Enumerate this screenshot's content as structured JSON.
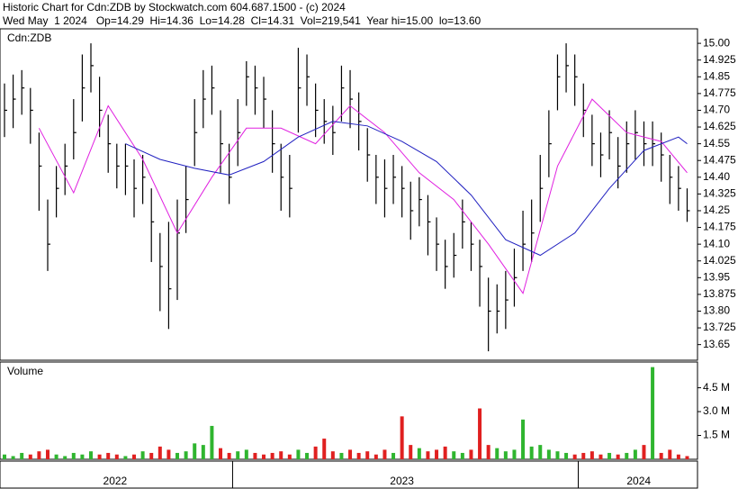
{
  "chart_data": {
    "type": "ohlc",
    "title": "Historic Chart for Cdn:ZDB by Stockwatch.com 604.687.1500 - (c) 2024",
    "subtitle": "Wed May  1 2024   Op=14.29  Hi=14.36  Lo=14.28  Cl=14.31  Vol=219,541  Year hi=15.00  lo=13.60",
    "symbol_label": "Cdn:ZDB",
    "color": "#000000",
    "x": [
      0,
      1,
      2,
      3,
      4,
      5,
      6,
      7,
      8,
      9,
      10,
      11,
      12,
      13,
      14,
      15,
      16,
      17,
      18,
      19,
      20,
      21,
      22,
      23,
      24,
      25,
      26,
      27,
      28,
      29,
      30,
      31,
      32,
      33,
      34,
      35,
      36,
      37,
      38,
      39,
      40,
      41,
      42,
      43,
      44,
      45,
      46,
      47,
      48,
      49,
      50,
      51,
      52,
      53,
      54,
      55,
      56,
      57,
      58,
      59,
      60,
      61,
      62,
      63,
      64,
      65,
      66,
      67,
      68,
      69,
      70,
      71,
      72,
      73,
      74,
      75,
      76,
      77,
      78,
      79
    ],
    "xlim": [
      -0.52,
      80.2
    ],
    "xticks": [
      26.4,
      66.4
    ],
    "xlabels": [
      {
        "value": 12.8,
        "label": "2022"
      },
      {
        "value": 46,
        "label": "2023"
      },
      {
        "value": 73.4,
        "label": "2024"
      }
    ],
    "high": [
      14.82,
      14.86,
      14.88,
      14.8,
      14.6,
      14.3,
      14.45,
      14.55,
      14.75,
      14.95,
      15.0,
      14.85,
      14.68,
      14.55,
      14.55,
      14.48,
      14.5,
      14.35,
      14.15,
      14.2,
      14.3,
      14.45,
      14.75,
      14.88,
      14.9,
      14.7,
      14.55,
      14.75,
      14.92,
      14.9,
      14.85,
      14.7,
      14.55,
      14.5,
      14.98,
      14.95,
      14.82,
      14.75,
      14.72,
      14.9,
      14.88,
      14.78,
      14.62,
      14.5,
      14.48,
      14.5,
      14.45,
      14.38,
      14.4,
      14.32,
      14.22,
      14.12,
      14.15,
      14.3,
      14.2,
      14.12,
      13.95,
      13.92,
      13.98,
      14.08,
      14.25,
      14.3,
      14.5,
      14.7,
      14.95,
      15.0,
      14.95,
      14.82,
      14.68,
      14.6,
      14.7,
      14.58,
      14.65,
      14.7,
      14.65,
      14.65,
      14.6,
      14.5,
      14.45,
      14.35
    ],
    "low": [
      14.58,
      14.62,
      14.68,
      14.55,
      14.25,
      13.98,
      14.22,
      14.32,
      14.48,
      14.65,
      14.78,
      14.58,
      14.42,
      14.35,
      14.32,
      14.22,
      14.28,
      14.02,
      13.8,
      13.72,
      13.85,
      14.15,
      14.45,
      14.62,
      14.68,
      14.42,
      14.28,
      14.45,
      14.72,
      14.68,
      14.62,
      14.42,
      14.25,
      14.22,
      14.6,
      14.72,
      14.58,
      14.55,
      14.5,
      14.65,
      14.62,
      14.52,
      14.38,
      14.28,
      14.22,
      14.28,
      14.22,
      14.12,
      14.18,
      14.05,
      13.98,
      13.9,
      13.95,
      14.08,
      13.98,
      13.82,
      13.62,
      13.7,
      13.72,
      13.82,
      13.98,
      14.02,
      14.2,
      14.4,
      14.7,
      14.78,
      14.72,
      14.58,
      14.45,
      14.4,
      14.48,
      14.35,
      14.42,
      14.48,
      14.45,
      14.45,
      14.38,
      14.28,
      14.25,
      14.2
    ],
    "close": [
      14.7,
      14.75,
      14.8,
      14.7,
      14.45,
      14.1,
      14.35,
      14.45,
      14.6,
      14.8,
      14.9,
      14.7,
      14.55,
      14.45,
      14.45,
      14.35,
      14.4,
      14.2,
      14.0,
      13.9,
      14.15,
      14.3,
      14.6,
      14.75,
      14.8,
      14.55,
      14.4,
      14.6,
      14.85,
      14.8,
      14.75,
      14.55,
      14.4,
      14.35,
      14.8,
      14.85,
      14.7,
      14.65,
      14.6,
      14.8,
      14.75,
      14.65,
      14.5,
      14.4,
      14.35,
      14.4,
      14.35,
      14.25,
      14.3,
      14.2,
      14.1,
      14.0,
      14.05,
      14.2,
      14.1,
      14.0,
      13.8,
      13.8,
      13.85,
      13.95,
      14.1,
      14.15,
      14.35,
      14.55,
      14.85,
      14.9,
      14.85,
      14.7,
      14.55,
      14.5,
      14.6,
      14.45,
      14.55,
      14.6,
      14.55,
      14.55,
      14.5,
      14.4,
      14.35,
      14.25
    ],
    "ylim": [
      13.58,
      15.065
    ],
    "yticks": [
      13.65,
      13.725,
      {
        "value": 13.8,
        "label": "13.80"
      },
      13.875,
      13.95,
      14.025,
      {
        "value": 14.1,
        "label": "14.10"
      },
      14.175,
      14.25,
      14.325,
      {
        "value": 14.4,
        "label": "14.40"
      },
      14.475,
      14.55,
      14.625,
      {
        "value": 14.7,
        "label": "14.70"
      },
      14.775,
      14.85,
      14.925,
      {
        "value": 15.0,
        "label": "15.00"
      }
    ],
    "ma": [
      {
        "color": "#e020e0",
        "x": [
          4,
          8,
          12,
          16,
          20,
          24,
          28,
          32,
          36,
          40,
          44,
          48,
          52,
          56,
          60,
          64,
          68,
          72,
          76,
          79
        ],
        "values": [
          14.62,
          14.33,
          14.72,
          14.48,
          14.15,
          14.4,
          14.62,
          14.62,
          14.55,
          14.72,
          14.6,
          14.42,
          14.3,
          14.1,
          13.88,
          14.45,
          14.75,
          14.6,
          14.56,
          14.42
        ]
      },
      {
        "color": "#2020c0",
        "x": [
          14,
          18,
          22,
          26,
          30,
          34,
          38,
          42,
          46,
          50,
          54,
          58,
          62,
          66,
          70,
          74,
          78,
          79
        ],
        "values": [
          14.55,
          14.48,
          14.44,
          14.41,
          14.47,
          14.58,
          14.65,
          14.63,
          14.56,
          14.47,
          14.32,
          14.12,
          14.05,
          14.15,
          14.35,
          14.52,
          14.58,
          14.55
        ]
      }
    ],
    "volume": {
      "label": "Volume",
      "up_color": "#2fb52f",
      "down_color": "#e02020",
      "values": [
        0.3,
        0.2,
        0.4,
        0.3,
        0.5,
        0.6,
        0.3,
        0.2,
        0.4,
        0.3,
        0.5,
        0.3,
        0.4,
        0.3,
        0.2,
        0.3,
        0.5,
        0.4,
        0.8,
        0.6,
        0.4,
        0.5,
        1.0,
        0.9,
        2.1,
        0.7,
        0.4,
        0.5,
        0.6,
        0.4,
        0.3,
        0.4,
        0.5,
        0.3,
        0.6,
        0.4,
        0.8,
        1.3,
        0.5,
        0.4,
        0.6,
        0.4,
        0.5,
        0.3,
        0.6,
        0.4,
        2.7,
        0.9,
        0.7,
        0.5,
        0.6,
        0.8,
        0.5,
        0.4,
        0.6,
        3.2,
        0.9,
        0.7,
        0.5,
        0.6,
        2.5,
        0.8,
        0.9,
        0.6,
        0.5,
        0.4,
        0.3,
        0.4,
        0.5,
        0.3,
        0.4,
        0.3,
        0.4,
        0.6,
        0.9,
        5.8,
        0.4,
        0.6,
        0.3,
        0.2
      ],
      "ylim": [
        0,
        6.12
      ],
      "yticks": [
        {
          "value": 1.5,
          "label": "1.5 M"
        },
        {
          "value": 3.0,
          "label": "3.0 M"
        },
        {
          "value": 4.5,
          "label": "4.5 M"
        }
      ]
    }
  }
}
